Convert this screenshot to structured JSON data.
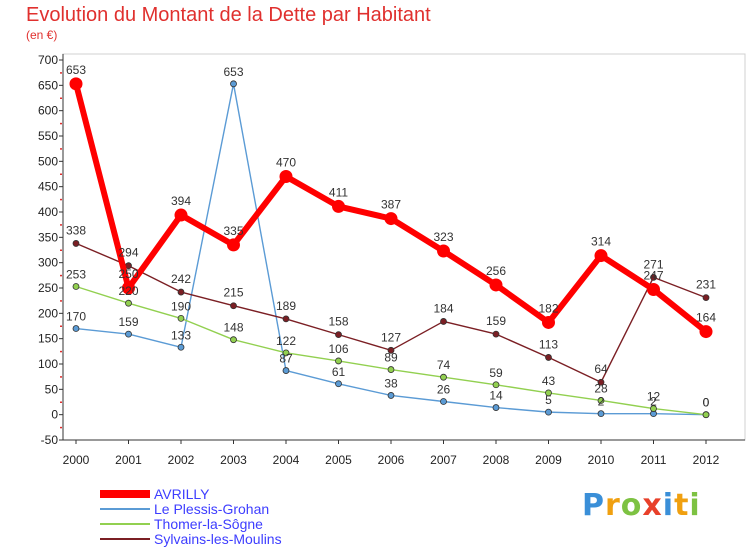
{
  "chart_data": {
    "type": "line",
    "title": "Evolution du Montant de la Dette par Habitant",
    "subtitle": "(en €)",
    "x": [
      "2000",
      "2001",
      "2002",
      "2003",
      "2004",
      "2005",
      "2006",
      "2007",
      "2008",
      "2009",
      "2010",
      "2011",
      "2012"
    ],
    "ylim": [
      -50,
      700
    ],
    "yticks": [
      -50,
      0,
      50,
      100,
      150,
      200,
      250,
      300,
      350,
      400,
      450,
      500,
      550,
      600,
      650,
      700
    ],
    "grid": false,
    "legend_placement": "bottom-left",
    "series": [
      {
        "name": "AVRILLY",
        "color": "#ff0000",
        "values": [
          653,
          250,
          394,
          335,
          470,
          411,
          387,
          323,
          256,
          182,
          314,
          247,
          164
        ],
        "labels": [
          "653",
          "250",
          "394",
          "335",
          "470",
          "411",
          "387",
          "323",
          "256",
          "182",
          "314",
          "247",
          "164"
        ]
      },
      {
        "name": "Le Plessis-Grohan",
        "color": "#5b9bd5",
        "values": [
          170,
          159,
          133,
          653,
          87,
          61,
          38,
          26,
          14,
          5,
          2,
          2,
          0
        ],
        "labels": [
          "170",
          "159",
          "133",
          "653",
          "87",
          "61",
          "38",
          "26",
          "14",
          "5",
          "2",
          "2",
          "0"
        ]
      },
      {
        "name": "Thomer-la-Sôgne",
        "color": "#92d050",
        "values": [
          253,
          220,
          190,
          148,
          122,
          106,
          89,
          74,
          59,
          43,
          28,
          12,
          0
        ],
        "labels": [
          "253",
          "220",
          "190",
          "148",
          "122",
          "106",
          "89",
          "74",
          "59",
          "43",
          "28",
          "12",
          "0"
        ]
      },
      {
        "name": "Sylvains-les-Moulins",
        "color": "#7b1f24",
        "values": [
          338,
          294,
          242,
          215,
          189,
          158,
          127,
          184,
          159,
          113,
          64,
          271,
          231
        ],
        "labels": [
          "338",
          "294",
          "242",
          "215",
          "189",
          "158",
          "127",
          "184",
          "159",
          "113",
          "64",
          "271",
          "231"
        ]
      }
    ]
  },
  "brand": {
    "letters": [
      "P",
      "r",
      "o",
      "x",
      "i",
      "t",
      "i"
    ],
    "colors": [
      "#3a8fd8",
      "#f0a010",
      "#7dc242",
      "#e8402a",
      "#3a8fd8",
      "#f0a010",
      "#7dc242"
    ]
  }
}
